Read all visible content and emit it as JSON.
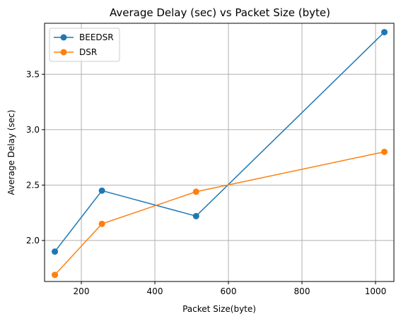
{
  "chart_data": {
    "type": "line",
    "title": "Average Delay (sec) vs Packet Size (byte)",
    "xlabel": "Packet Size(byte)",
    "ylabel": "Average Delay (sec)",
    "xlim": [
      100,
      1050
    ],
    "ylim": [
      1.63,
      3.96
    ],
    "xticks": [
      200,
      400,
      600,
      800,
      1000
    ],
    "xtick_labels": [
      "200",
      "400",
      "600",
      "800",
      "1000"
    ],
    "yticks": [
      2.0,
      2.5,
      3.0,
      3.5
    ],
    "ytick_labels": [
      "2.0",
      "2.5",
      "3.0",
      "3.5"
    ],
    "grid": true,
    "legend_position": "top-left",
    "x": [
      128,
      256,
      512,
      1024
    ],
    "series": [
      {
        "name": "BEEDSR",
        "color": "#1f77b4",
        "marker": "circle",
        "values": [
          1.9,
          2.45,
          2.22,
          3.88
        ]
      },
      {
        "name": "DSR",
        "color": "#ff7f0e",
        "marker": "circle",
        "values": [
          1.69,
          2.15,
          2.44,
          2.8
        ]
      }
    ]
  }
}
